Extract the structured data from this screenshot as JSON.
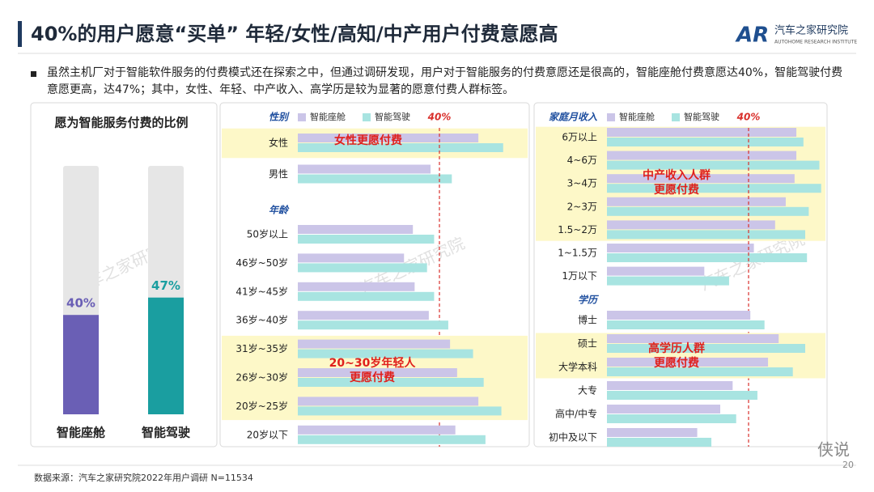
{
  "header": {
    "title": "40%的用户愿意“买单” 年轻/女性/高知/中产用户付费意愿高",
    "logo": "汽车之家研究院",
    "logo_sub": "AUTOHOME RESEARCH INSTITUTE"
  },
  "bullet": "虽然主机厂对于智能软件服务的付费模式还在探索之中，但通过调研发现，用户对于智能服务的付费意愿还是很高的，智能座舱付费意愿达40%，智能驾驶付费意愿更高，达47%；其中，女性、年轻、中产收入、高学历是较为显著的愿意付费人群标签。",
  "chart_data": [
    {
      "type": "bar",
      "title": "愿为智能服务付费的比例",
      "categories": [
        "智能座舱",
        "智能驾驶"
      ],
      "values": [
        40,
        47
      ],
      "value_labels": [
        "40%",
        "47%"
      ],
      "colors": [
        "#6a5fb5",
        "#1a9ea0"
      ],
      "ylim": [
        0,
        100
      ]
    },
    {
      "type": "hbar",
      "group_label": "性别",
      "series": [
        {
          "name": "智能座舱",
          "color": "#cbc5e8",
          "values": [
            51,
            37.5
          ]
        },
        {
          "name": "智能驾驶",
          "color": "#a8e4e1",
          "values": [
            58,
            43.5
          ]
        }
      ],
      "categories": [
        "女性",
        "男性"
      ],
      "xlim": [
        0,
        80
      ],
      "reference": {
        "value": 40,
        "label": "40%"
      },
      "highlight": [
        0
      ],
      "annotation": [
        "女性更愿付费"
      ]
    },
    {
      "type": "hbar",
      "group_label": "年龄",
      "series": [
        {
          "color": "#cbc5e8",
          "values": [
            32.5,
            30,
            33,
            37,
            43,
            45,
            51,
            44.5
          ]
        },
        {
          "color": "#a8e4e1",
          "values": [
            38.5,
            36.5,
            38.5,
            42.5,
            49.5,
            52.5,
            57.5,
            53
          ]
        }
      ],
      "categories": [
        "50岁以上",
        "46岁~50岁",
        "41岁~45岁",
        "36岁~40岁",
        "31岁~35岁",
        "26岁~30岁",
        "20岁~25岁",
        "20岁以下"
      ],
      "xlim": [
        0,
        80
      ],
      "highlight": [
        4,
        5,
        6
      ],
      "annotation": [
        "20~30岁年轻人",
        "更愿付费"
      ]
    },
    {
      "type": "hbar",
      "group_label": "家庭月收入",
      "series": [
        {
          "name": "智能座舱",
          "color": "#cbc5e8",
          "values": [
            53.5,
            53.5,
            53,
            50.5,
            47.5,
            41.5,
            27.5
          ]
        },
        {
          "name": "智能驾驶",
          "color": "#a8e4e1",
          "values": [
            55.5,
            60,
            60.5,
            57,
            56,
            56.5,
            34.5
          ]
        }
      ],
      "categories": [
        "6万以上",
        "4~6万",
        "3~4万",
        "2~3万",
        "1.5~2万",
        "1~1.5万",
        "1万以下"
      ],
      "xlim": [
        0,
        80
      ],
      "reference": {
        "value": 40,
        "label": "40%"
      },
      "highlight": [
        0,
        1,
        2,
        3,
        4
      ],
      "annotation": [
        "中产收入人群",
        "更愿付费"
      ]
    },
    {
      "type": "hbar",
      "group_label": "学历",
      "series": [
        {
          "color": "#cbc5e8",
          "values": [
            40.5,
            48.5,
            45.5,
            35.5,
            32,
            25.5
          ]
        },
        {
          "color": "#a8e4e1",
          "values": [
            44.5,
            56,
            52.5,
            42.5,
            36.5,
            29.5
          ]
        }
      ],
      "categories": [
        "博士",
        "硕士",
        "大学本科",
        "大专",
        "高中/中专",
        "初中及以下"
      ],
      "xlim": [
        0,
        80
      ],
      "highlight": [
        1,
        2
      ],
      "annotation": [
        "高学历人群",
        "更愿付费"
      ]
    }
  ],
  "watermark": "汽车之家研究院",
  "source": "数据来源：汽车之家研究院2022年用户调研 N=11534",
  "page_number": "20",
  "wechat": "侠说"
}
